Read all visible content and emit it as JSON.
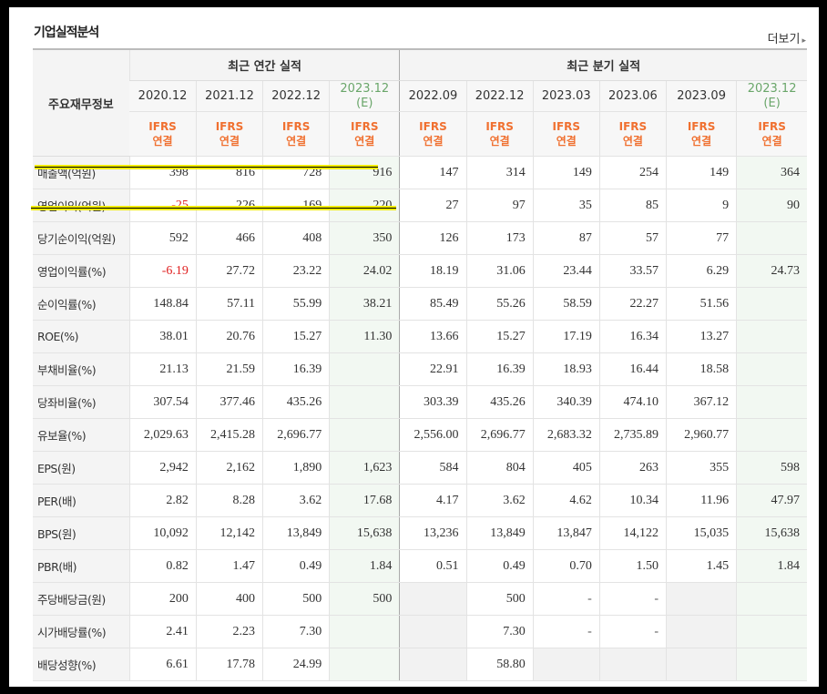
{
  "header": {
    "title": "기업실적분석",
    "more_label": "더보기",
    "more_arrow": "▸"
  },
  "table": {
    "row_header_label": "주요재무정보",
    "group_annual": "최근 연간 실적",
    "group_quarter": "최근 분기 실적",
    "periods": [
      {
        "date": "2020.12",
        "est": ""
      },
      {
        "date": "2021.12",
        "est": ""
      },
      {
        "date": "2022.12",
        "est": ""
      },
      {
        "date": "2023.12",
        "est": "(E)"
      },
      {
        "date": "2022.09",
        "est": ""
      },
      {
        "date": "2022.12",
        "est": ""
      },
      {
        "date": "2023.03",
        "est": ""
      },
      {
        "date": "2023.06",
        "est": ""
      },
      {
        "date": "2023.09",
        "est": ""
      },
      {
        "date": "2023.12",
        "est": "(E)"
      }
    ],
    "basis_line1": "IFRS",
    "basis_line2": "연결",
    "rows": [
      {
        "label": "매출액(억원)",
        "values": [
          "398",
          "816",
          "728",
          "916",
          "147",
          "314",
          "149",
          "254",
          "149",
          "364"
        ]
      },
      {
        "label": "영업이익(억원)",
        "values": [
          "-25",
          "226",
          "169",
          "220",
          "27",
          "97",
          "35",
          "85",
          "9",
          "90"
        ]
      },
      {
        "label": "당기순이익(억원)",
        "values": [
          "592",
          "466",
          "408",
          "350",
          "126",
          "173",
          "87",
          "57",
          "77",
          ""
        ]
      },
      {
        "label": "영업이익률(%)",
        "values": [
          "-6.19",
          "27.72",
          "23.22",
          "24.02",
          "18.19",
          "31.06",
          "23.44",
          "33.57",
          "6.29",
          "24.73"
        ]
      },
      {
        "label": "순이익률(%)",
        "values": [
          "148.84",
          "57.11",
          "55.99",
          "38.21",
          "85.49",
          "55.26",
          "58.59",
          "22.27",
          "51.56",
          ""
        ]
      },
      {
        "label": "ROE(%)",
        "values": [
          "38.01",
          "20.76",
          "15.27",
          "11.30",
          "13.66",
          "15.27",
          "17.19",
          "16.34",
          "13.27",
          ""
        ]
      },
      {
        "label": "부채비율(%)",
        "values": [
          "21.13",
          "21.59",
          "16.39",
          "",
          "22.91",
          "16.39",
          "18.93",
          "16.44",
          "18.58",
          ""
        ]
      },
      {
        "label": "당좌비율(%)",
        "values": [
          "307.54",
          "377.46",
          "435.26",
          "",
          "303.39",
          "435.26",
          "340.39",
          "474.10",
          "367.12",
          ""
        ]
      },
      {
        "label": "유보율(%)",
        "values": [
          "2,029.63",
          "2,415.28",
          "2,696.77",
          "",
          "2,556.00",
          "2,696.77",
          "2,683.32",
          "2,735.89",
          "2,960.77",
          ""
        ]
      },
      {
        "label": "EPS(원)",
        "values": [
          "2,942",
          "2,162",
          "1,890",
          "1,623",
          "584",
          "804",
          "405",
          "263",
          "355",
          "598"
        ]
      },
      {
        "label": "PER(배)",
        "values": [
          "2.82",
          "8.28",
          "3.62",
          "17.68",
          "4.17",
          "3.62",
          "4.62",
          "10.34",
          "11.96",
          "47.97"
        ]
      },
      {
        "label": "BPS(원)",
        "values": [
          "10,092",
          "12,142",
          "13,849",
          "15,638",
          "13,236",
          "13,849",
          "13,847",
          "14,122",
          "15,035",
          "15,638"
        ]
      },
      {
        "label": "PBR(배)",
        "values": [
          "0.82",
          "1.47",
          "0.49",
          "1.84",
          "0.51",
          "0.49",
          "0.70",
          "1.50",
          "1.45",
          "1.84"
        ]
      },
      {
        "label": "주당배당금(원)",
        "values": [
          "200",
          "400",
          "500",
          "500",
          "",
          "500",
          "-",
          "-",
          "",
          ""
        ]
      },
      {
        "label": "시가배당률(%)",
        "values": [
          "2.41",
          "2.23",
          "7.30",
          "",
          "",
          "7.30",
          "-",
          "-",
          "",
          ""
        ]
      },
      {
        "label": "배당성향(%)",
        "values": [
          "6.61",
          "17.78",
          "24.99",
          "",
          "",
          "58.80",
          "",
          "",
          "",
          ""
        ]
      }
    ]
  },
  "colors": {
    "accent_ifrs": "#f07030",
    "estimate_text": "#6aa66a",
    "negative": "#e02020",
    "highlight": "#f2ec00"
  }
}
